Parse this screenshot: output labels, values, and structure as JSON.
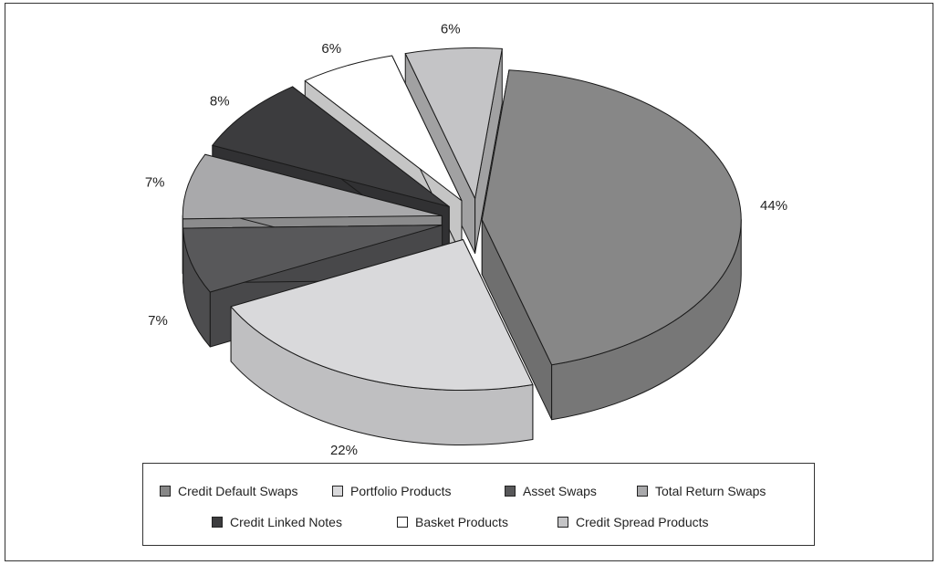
{
  "chart_data": {
    "type": "pie",
    "variant": "3d-exploded",
    "title": "",
    "categories": [
      "Credit Default Swaps",
      "Portfolio Products",
      "Asset Swaps",
      "Total Return Swaps",
      "Credit Linked Notes",
      "Basket Products",
      "Credit Spread Products"
    ],
    "values": [
      44,
      22,
      7,
      7,
      8,
      6,
      6
    ],
    "value_labels": [
      "44%",
      "22%",
      "7%",
      "7%",
      "8%",
      "6%",
      "6%"
    ],
    "colors": [
      "#878787",
      "#d9d9db",
      "#58585a",
      "#a9a9ab",
      "#3c3c3e",
      "#ffffff",
      "#c4c4c6"
    ],
    "legend_position": "bottom"
  }
}
